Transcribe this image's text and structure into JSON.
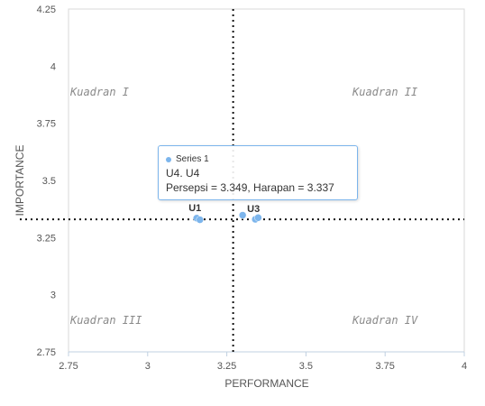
{
  "chart_data": {
    "type": "scatter",
    "xlabel": "PERFORMANCE",
    "ylabel": "IMPORTANCE",
    "xlim": [
      2.75,
      4
    ],
    "ylim": [
      2.75,
      4.25
    ],
    "x_ticks": [
      "2.75",
      "3",
      "3.25",
      "3.5",
      "3.75",
      "4"
    ],
    "y_ticks": [
      "2.75",
      "3",
      "3.25",
      "3.5",
      "3.75",
      "4",
      "4.25"
    ],
    "grid": false,
    "reference_lines": {
      "x": 3.27,
      "y": 3.33
    },
    "quadrants": [
      {
        "label": "Kuadran I",
        "position": "top-left"
      },
      {
        "label": "Kuadran II",
        "position": "top-right"
      },
      {
        "label": "Kuadran III",
        "position": "bottom-left"
      },
      {
        "label": "Kuadran IV",
        "position": "bottom-right"
      }
    ],
    "series": [
      {
        "name": "Series 1",
        "color": "#7cb5ec",
        "points": [
          {
            "x": 3.155,
            "y": 3.335,
            "label": "U1"
          },
          {
            "x": 3.165,
            "y": 3.328,
            "label": ""
          },
          {
            "x": 3.3,
            "y": 3.348,
            "label": ""
          },
          {
            "x": 3.34,
            "y": 3.33,
            "label": "U3"
          },
          {
            "x": 3.349,
            "y": 3.337,
            "label": ""
          }
        ]
      }
    ],
    "tooltip": {
      "series_name": "Series 1",
      "title": "U4. U4",
      "text": "Persepsi = 3.349, Harapan = 3.337"
    }
  }
}
